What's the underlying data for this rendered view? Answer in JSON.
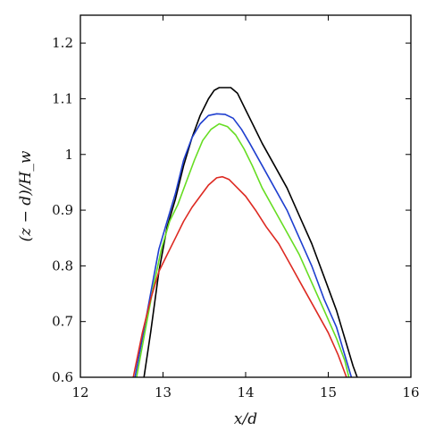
{
  "chart_data": {
    "type": "line",
    "xlabel": "x/d",
    "ylabel": "(z − d)/H_w",
    "xlim": [
      12,
      16
    ],
    "ylim": [
      0.6,
      1.25
    ],
    "xticks": [
      "12",
      "13",
      "14",
      "15",
      "16"
    ],
    "yticks": [
      "0.6",
      "0.7",
      "0.8",
      "0.9",
      "1",
      "1.1",
      "1.2"
    ],
    "grid": false,
    "series": [
      {
        "color": "#000000",
        "x": [
          12.77,
          12.85,
          12.95,
          13.05,
          13.15,
          13.25,
          13.35,
          13.45,
          13.55,
          13.62,
          13.68,
          13.75,
          13.82,
          13.9,
          14.0,
          14.1,
          14.2,
          14.35,
          14.5,
          14.65,
          14.8,
          14.95,
          15.1,
          15.2,
          15.3,
          15.35
        ],
        "y": [
          0.6,
          0.68,
          0.79,
          0.87,
          0.92,
          0.98,
          1.03,
          1.07,
          1.1,
          1.115,
          1.12,
          1.12,
          1.12,
          1.11,
          1.08,
          1.05,
          1.02,
          0.98,
          0.94,
          0.89,
          0.84,
          0.78,
          0.72,
          0.67,
          0.62,
          0.6
        ]
      },
      {
        "color": "#1f3fcf",
        "x": [
          12.66,
          12.75,
          12.85,
          12.95,
          13.05,
          13.15,
          13.25,
          13.35,
          13.45,
          13.55,
          13.65,
          13.75,
          13.85,
          13.95,
          14.05,
          14.2,
          14.35,
          14.5,
          14.65,
          14.8,
          14.95,
          15.1,
          15.2,
          15.28
        ],
        "y": [
          0.6,
          0.67,
          0.75,
          0.83,
          0.88,
          0.93,
          0.99,
          1.03,
          1.055,
          1.07,
          1.073,
          1.072,
          1.065,
          1.045,
          1.02,
          0.98,
          0.94,
          0.9,
          0.85,
          0.8,
          0.74,
          0.69,
          0.64,
          0.6
        ]
      },
      {
        "color": "#66dd22",
        "x": [
          12.68,
          12.78,
          12.88,
          12.98,
          13.08,
          13.18,
          13.28,
          13.38,
          13.48,
          13.58,
          13.68,
          13.78,
          13.88,
          13.98,
          14.08,
          14.2,
          14.35,
          14.5,
          14.65,
          14.8,
          14.95,
          15.1,
          15.2,
          15.25
        ],
        "y": [
          0.6,
          0.68,
          0.76,
          0.83,
          0.88,
          0.91,
          0.95,
          0.99,
          1.025,
          1.045,
          1.055,
          1.05,
          1.035,
          1.01,
          0.98,
          0.94,
          0.9,
          0.86,
          0.82,
          0.77,
          0.72,
          0.67,
          0.63,
          0.6
        ]
      },
      {
        "color": "#dd2a22",
        "x": [
          12.64,
          12.75,
          12.85,
          12.95,
          13.05,
          13.15,
          13.25,
          13.35,
          13.45,
          13.55,
          13.65,
          13.72,
          13.8,
          13.9,
          14.0,
          14.12,
          14.25,
          14.4,
          14.55,
          14.7,
          14.85,
          15.0,
          15.12,
          15.22
        ],
        "y": [
          0.6,
          0.68,
          0.74,
          0.79,
          0.82,
          0.85,
          0.88,
          0.905,
          0.925,
          0.945,
          0.958,
          0.96,
          0.955,
          0.94,
          0.925,
          0.9,
          0.87,
          0.84,
          0.8,
          0.76,
          0.72,
          0.68,
          0.64,
          0.6
        ]
      }
    ]
  }
}
